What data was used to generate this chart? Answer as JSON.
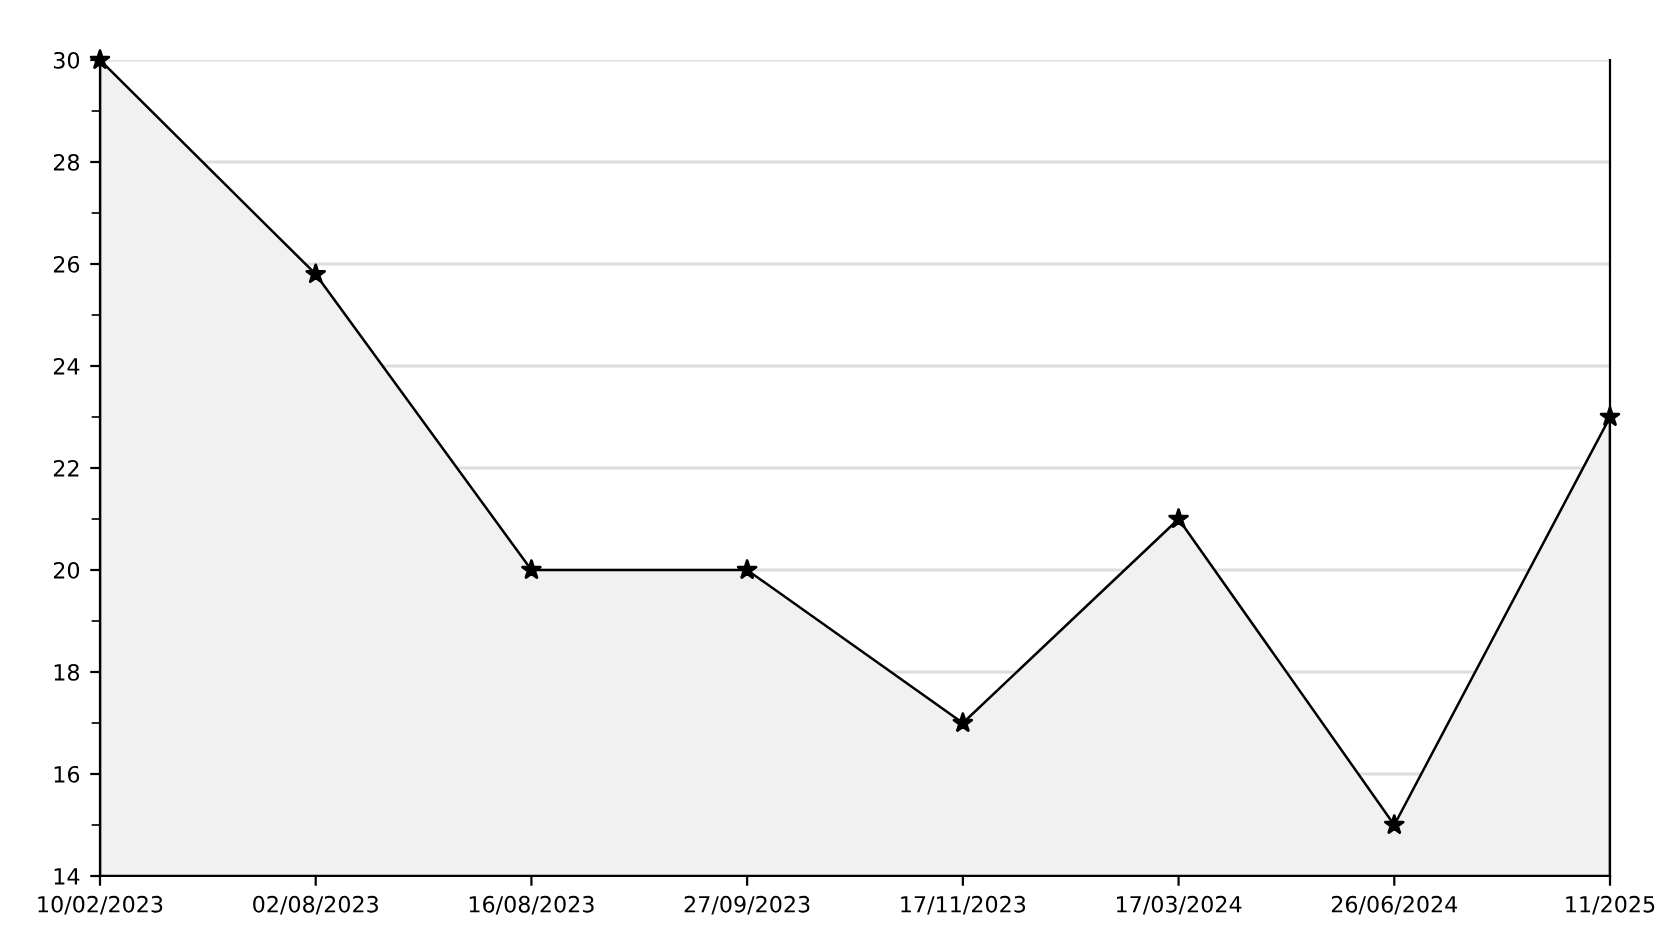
{
  "chart_data": {
    "type": "area",
    "categories": [
      "10/02/2023",
      "02/08/2023",
      "16/08/2023",
      "27/09/2023",
      "17/11/2023",
      "17/03/2024",
      "26/06/2024",
      "11/2025"
    ],
    "series": [
      {
        "color": "#000000",
        "values": [
          30,
          25.8,
          20,
          20,
          17,
          21,
          15,
          23
        ]
      }
    ],
    "ylim": [
      14,
      30
    ],
    "yticks": [
      14,
      16,
      18,
      20,
      22,
      24,
      26,
      28,
      30
    ],
    "grid": "y",
    "marker": "star",
    "line_style": "solid"
  }
}
